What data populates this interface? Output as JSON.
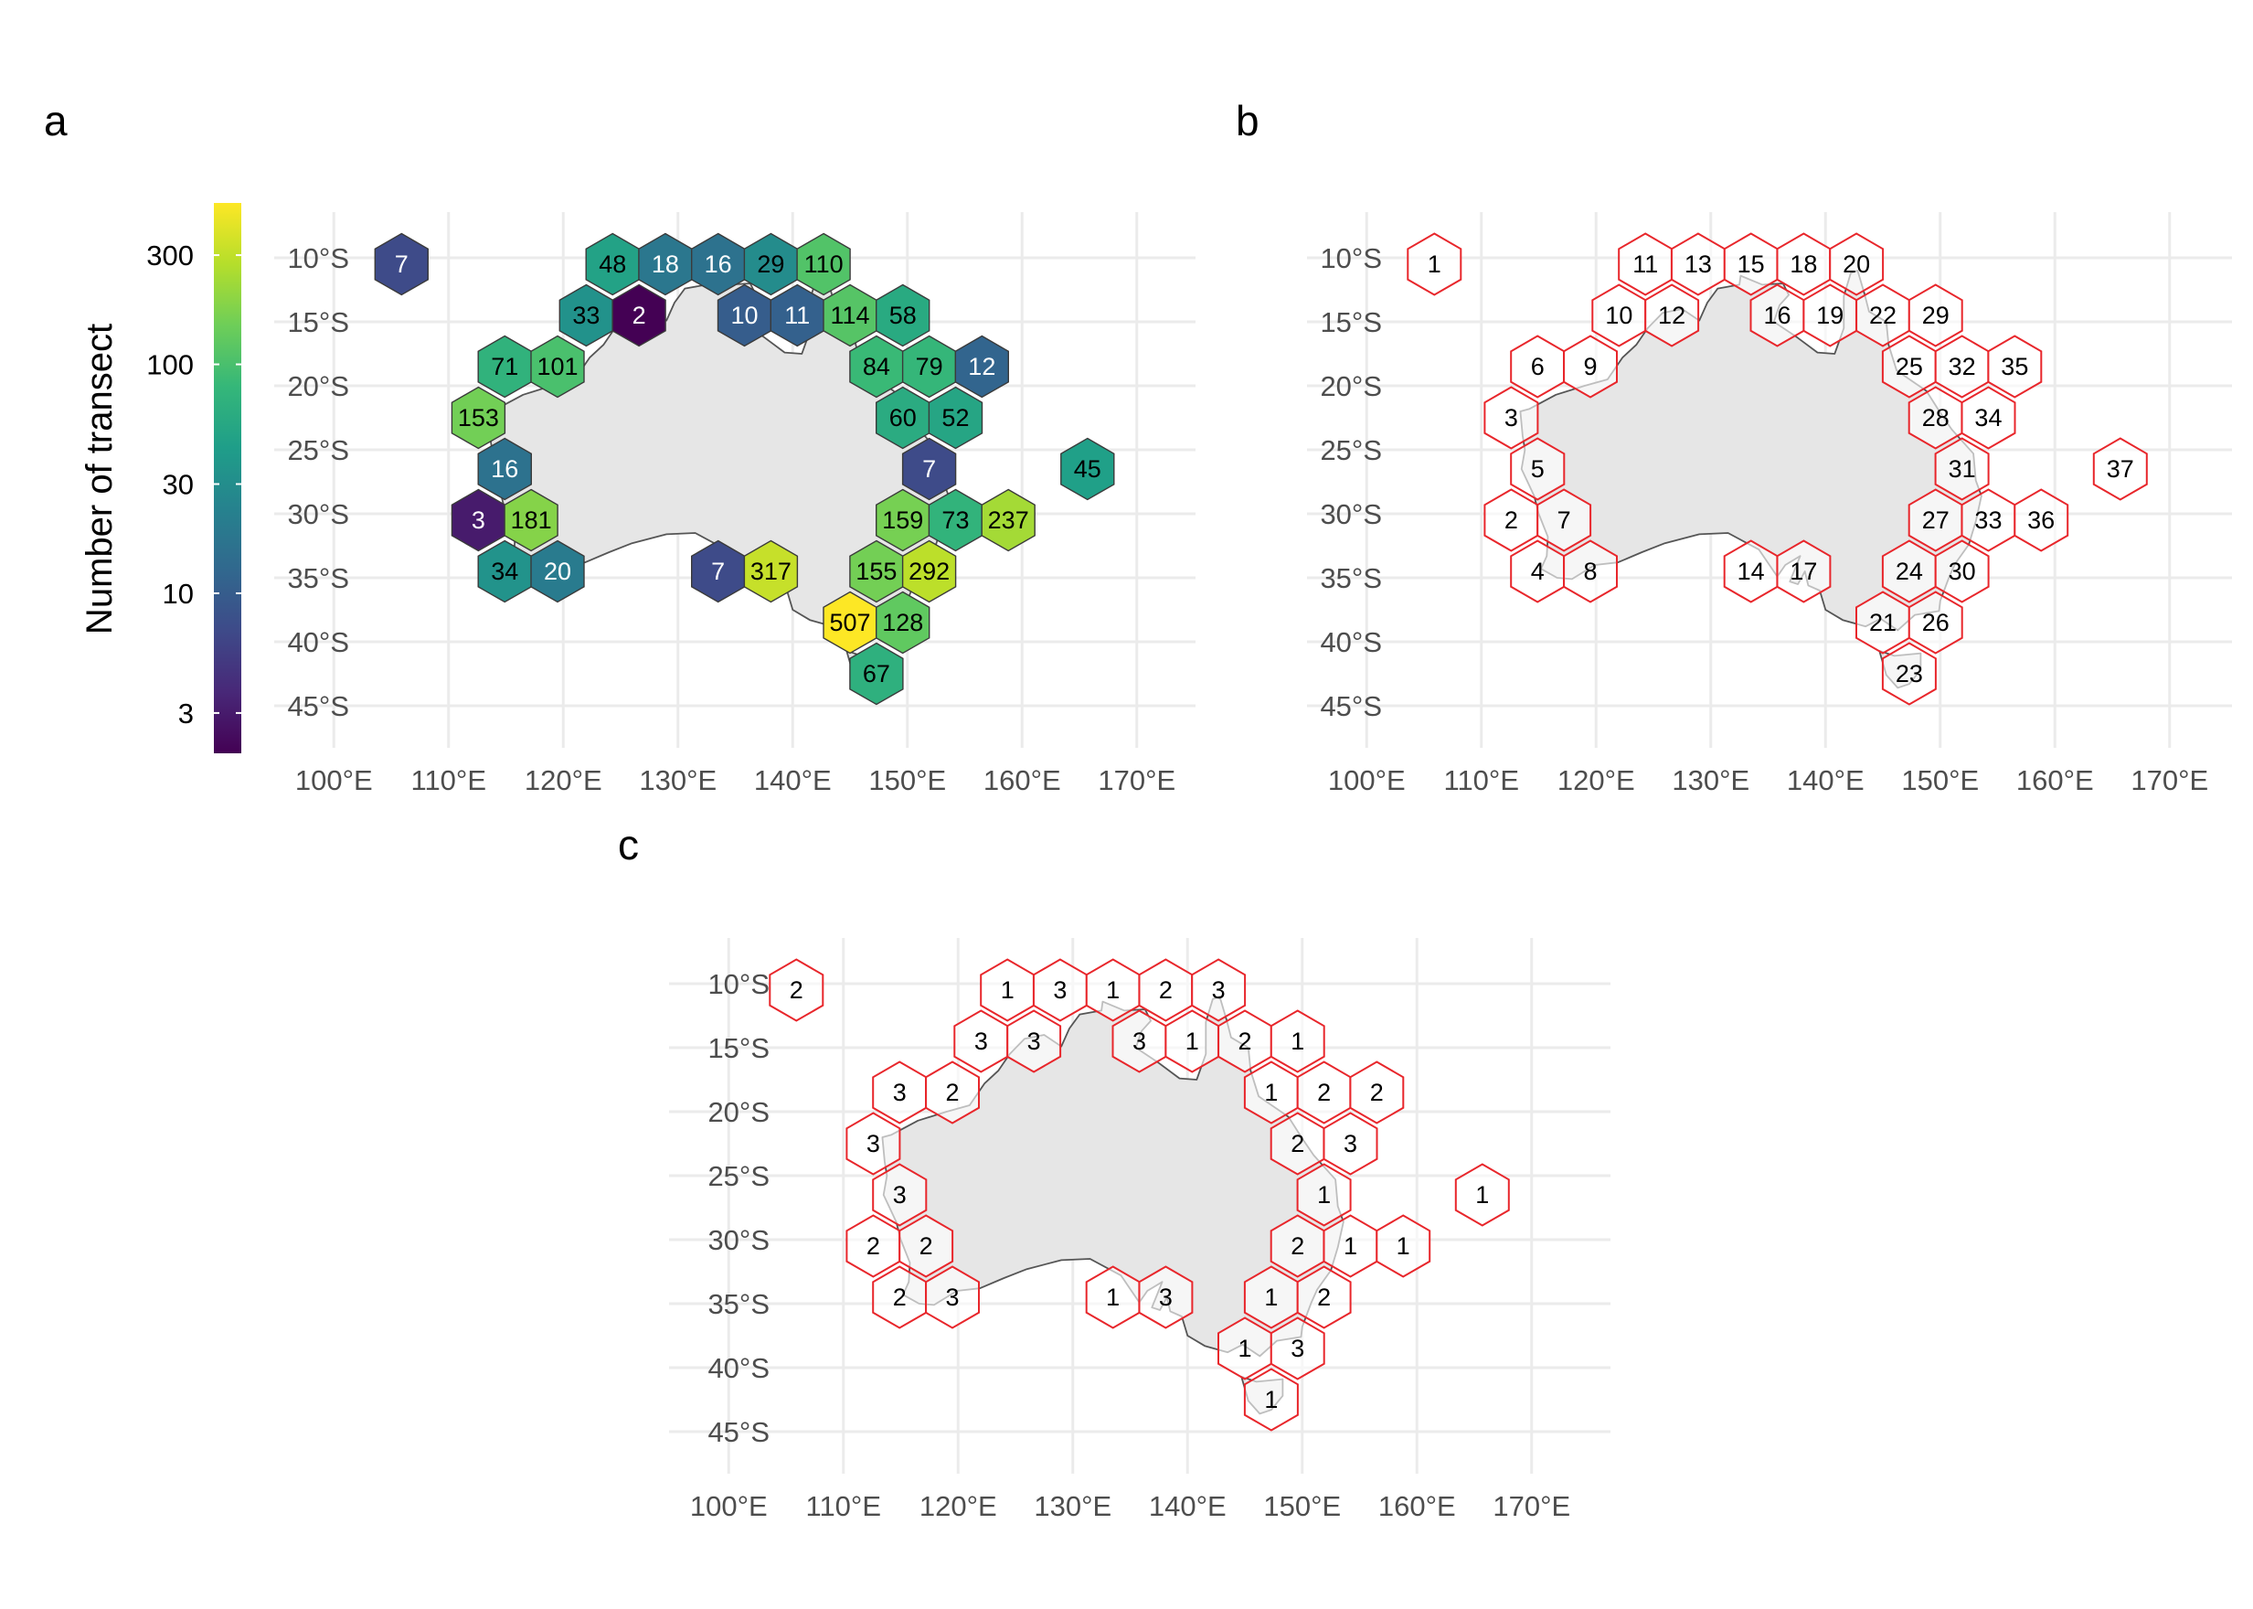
{
  "panels": [
    {
      "id": "a",
      "letter": "a",
      "x_ticks": [
        "100°E",
        "110°E",
        "120°E",
        "130°E",
        "140°E",
        "150°E",
        "160°E",
        "170°E"
      ],
      "y_ticks": [
        "10°S",
        "15°S",
        "20°S",
        "25°S",
        "30°S",
        "35°S",
        "40°S",
        "45°S"
      ],
      "fill": "viridis",
      "hexes": [
        {
          "lon": 105.9,
          "lat": -10.5,
          "label": "7",
          "value": 7
        },
        {
          "lon": 124.3,
          "lat": -10.5,
          "label": "48",
          "value": 48
        },
        {
          "lon": 128.9,
          "lat": -10.5,
          "label": "18",
          "value": 18
        },
        {
          "lon": 133.5,
          "lat": -10.5,
          "label": "16",
          "value": 16
        },
        {
          "lon": 138.1,
          "lat": -10.5,
          "label": "29",
          "value": 29
        },
        {
          "lon": 142.7,
          "lat": -10.5,
          "label": "110",
          "value": 110
        },
        {
          "lon": 122.0,
          "lat": -14.5,
          "label": "33",
          "value": 33
        },
        {
          "lon": 126.6,
          "lat": -14.5,
          "label": "2",
          "value": 2
        },
        {
          "lon": 135.8,
          "lat": -14.5,
          "label": "10",
          "value": 10
        },
        {
          "lon": 140.4,
          "lat": -14.5,
          "label": "11",
          "value": 11
        },
        {
          "lon": 145.0,
          "lat": -14.5,
          "label": "114",
          "value": 114
        },
        {
          "lon": 149.6,
          "lat": -14.5,
          "label": "58",
          "value": 58
        },
        {
          "lon": 114.9,
          "lat": -18.5,
          "label": "71",
          "value": 71
        },
        {
          "lon": 119.5,
          "lat": -18.5,
          "label": "101",
          "value": 101
        },
        {
          "lon": 147.3,
          "lat": -18.5,
          "label": "84",
          "value": 84
        },
        {
          "lon": 151.9,
          "lat": -18.5,
          "label": "79",
          "value": 79
        },
        {
          "lon": 156.5,
          "lat": -18.5,
          "label": "12",
          "value": 12
        },
        {
          "lon": 112.6,
          "lat": -22.5,
          "label": "153",
          "value": 153
        },
        {
          "lon": 149.6,
          "lat": -22.5,
          "label": "60",
          "value": 60
        },
        {
          "lon": 154.2,
          "lat": -22.5,
          "label": "52",
          "value": 52
        },
        {
          "lon": 114.9,
          "lat": -26.5,
          "label": "16",
          "value": 16
        },
        {
          "lon": 151.9,
          "lat": -26.5,
          "label": "7",
          "value": 7
        },
        {
          "lon": 165.7,
          "lat": -26.5,
          "label": "45",
          "value": 45
        },
        {
          "lon": 112.6,
          "lat": -30.5,
          "label": "3",
          "value": 3
        },
        {
          "lon": 117.2,
          "lat": -30.5,
          "label": "181",
          "value": 181
        },
        {
          "lon": 149.6,
          "lat": -30.5,
          "label": "159",
          "value": 159
        },
        {
          "lon": 154.2,
          "lat": -30.5,
          "label": "73",
          "value": 73
        },
        {
          "lon": 158.8,
          "lat": -30.5,
          "label": "237",
          "value": 237
        },
        {
          "lon": 114.9,
          "lat": -34.5,
          "label": "34",
          "value": 34
        },
        {
          "lon": 119.5,
          "lat": -34.5,
          "label": "20",
          "value": 20
        },
        {
          "lon": 133.5,
          "lat": -34.5,
          "label": "7",
          "value": 7
        },
        {
          "lon": 138.1,
          "lat": -34.5,
          "label": "317",
          "value": 317
        },
        {
          "lon": 147.3,
          "lat": -34.5,
          "label": "155",
          "value": 155
        },
        {
          "lon": 151.9,
          "lat": -34.5,
          "label": "292",
          "value": 292
        },
        {
          "lon": 145.0,
          "lat": -38.5,
          "label": "507",
          "value": 507
        },
        {
          "lon": 149.6,
          "lat": -38.5,
          "label": "128",
          "value": 128
        },
        {
          "lon": 147.3,
          "lat": -42.5,
          "label": "67",
          "value": 67
        }
      ]
    },
    {
      "id": "b",
      "letter": "b",
      "x_ticks": [
        "100°E",
        "110°E",
        "120°E",
        "130°E",
        "140°E",
        "150°E",
        "160°E",
        "170°E"
      ],
      "y_ticks": [
        "10°S",
        "15°S",
        "20°S",
        "25°S",
        "30°S",
        "35°S",
        "40°S",
        "45°S"
      ],
      "fill": "outline",
      "hexes": [
        {
          "lon": 105.9,
          "lat": -10.5,
          "label": "1"
        },
        {
          "lon": 124.3,
          "lat": -10.5,
          "label": "11"
        },
        {
          "lon": 128.9,
          "lat": -10.5,
          "label": "13"
        },
        {
          "lon": 133.5,
          "lat": -10.5,
          "label": "15"
        },
        {
          "lon": 138.1,
          "lat": -10.5,
          "label": "18"
        },
        {
          "lon": 142.7,
          "lat": -10.5,
          "label": "20"
        },
        {
          "lon": 122.0,
          "lat": -14.5,
          "label": "10"
        },
        {
          "lon": 126.6,
          "lat": -14.5,
          "label": "12"
        },
        {
          "lon": 135.8,
          "lat": -14.5,
          "label": "16"
        },
        {
          "lon": 140.4,
          "lat": -14.5,
          "label": "19"
        },
        {
          "lon": 145.0,
          "lat": -14.5,
          "label": "22"
        },
        {
          "lon": 149.6,
          "lat": -14.5,
          "label": "29"
        },
        {
          "lon": 114.9,
          "lat": -18.5,
          "label": "6"
        },
        {
          "lon": 119.5,
          "lat": -18.5,
          "label": "9"
        },
        {
          "lon": 147.3,
          "lat": -18.5,
          "label": "25"
        },
        {
          "lon": 151.9,
          "lat": -18.5,
          "label": "32"
        },
        {
          "lon": 156.5,
          "lat": -18.5,
          "label": "35"
        },
        {
          "lon": 112.6,
          "lat": -22.5,
          "label": "3"
        },
        {
          "lon": 149.6,
          "lat": -22.5,
          "label": "28"
        },
        {
          "lon": 154.2,
          "lat": -22.5,
          "label": "34"
        },
        {
          "lon": 114.9,
          "lat": -26.5,
          "label": "5"
        },
        {
          "lon": 151.9,
          "lat": -26.5,
          "label": "31"
        },
        {
          "lon": 165.7,
          "lat": -26.5,
          "label": "37"
        },
        {
          "lon": 112.6,
          "lat": -30.5,
          "label": "2"
        },
        {
          "lon": 117.2,
          "lat": -30.5,
          "label": "7"
        },
        {
          "lon": 149.6,
          "lat": -30.5,
          "label": "27"
        },
        {
          "lon": 154.2,
          "lat": -30.5,
          "label": "33"
        },
        {
          "lon": 158.8,
          "lat": -30.5,
          "label": "36"
        },
        {
          "lon": 114.9,
          "lat": -34.5,
          "label": "4"
        },
        {
          "lon": 119.5,
          "lat": -34.5,
          "label": "8"
        },
        {
          "lon": 133.5,
          "lat": -34.5,
          "label": "14"
        },
        {
          "lon": 138.1,
          "lat": -34.5,
          "label": "17"
        },
        {
          "lon": 147.3,
          "lat": -34.5,
          "label": "24"
        },
        {
          "lon": 151.9,
          "lat": -34.5,
          "label": "30"
        },
        {
          "lon": 145.0,
          "lat": -38.5,
          "label": "21"
        },
        {
          "lon": 149.6,
          "lat": -38.5,
          "label": "26"
        },
        {
          "lon": 147.3,
          "lat": -42.5,
          "label": "23"
        }
      ]
    },
    {
      "id": "c",
      "letter": "c",
      "x_ticks": [
        "100°E",
        "110°E",
        "120°E",
        "130°E",
        "140°E",
        "150°E",
        "160°E",
        "170°E"
      ],
      "y_ticks": [
        "10°S",
        "15°S",
        "20°S",
        "25°S",
        "30°S",
        "35°S",
        "40°S",
        "45°S"
      ],
      "fill": "outline",
      "hexes": [
        {
          "lon": 105.9,
          "lat": -10.5,
          "label": "2"
        },
        {
          "lon": 124.3,
          "lat": -10.5,
          "label": "1"
        },
        {
          "lon": 128.9,
          "lat": -10.5,
          "label": "3"
        },
        {
          "lon": 133.5,
          "lat": -10.5,
          "label": "1"
        },
        {
          "lon": 138.1,
          "lat": -10.5,
          "label": "2"
        },
        {
          "lon": 142.7,
          "lat": -10.5,
          "label": "3"
        },
        {
          "lon": 122.0,
          "lat": -14.5,
          "label": "3"
        },
        {
          "lon": 126.6,
          "lat": -14.5,
          "label": "3"
        },
        {
          "lon": 135.8,
          "lat": -14.5,
          "label": "3"
        },
        {
          "lon": 140.4,
          "lat": -14.5,
          "label": "1"
        },
        {
          "lon": 145.0,
          "lat": -14.5,
          "label": "2"
        },
        {
          "lon": 149.6,
          "lat": -14.5,
          "label": "1"
        },
        {
          "lon": 114.9,
          "lat": -18.5,
          "label": "3"
        },
        {
          "lon": 119.5,
          "lat": -18.5,
          "label": "2"
        },
        {
          "lon": 147.3,
          "lat": -18.5,
          "label": "1"
        },
        {
          "lon": 151.9,
          "lat": -18.5,
          "label": "2"
        },
        {
          "lon": 156.5,
          "lat": -18.5,
          "label": "2"
        },
        {
          "lon": 112.6,
          "lat": -22.5,
          "label": "3"
        },
        {
          "lon": 149.6,
          "lat": -22.5,
          "label": "2"
        },
        {
          "lon": 154.2,
          "lat": -22.5,
          "label": "3"
        },
        {
          "lon": 114.9,
          "lat": -26.5,
          "label": "3"
        },
        {
          "lon": 151.9,
          "lat": -26.5,
          "label": "1"
        },
        {
          "lon": 165.7,
          "lat": -26.5,
          "label": "1"
        },
        {
          "lon": 112.6,
          "lat": -30.5,
          "label": "2"
        },
        {
          "lon": 117.2,
          "lat": -30.5,
          "label": "2"
        },
        {
          "lon": 149.6,
          "lat": -30.5,
          "label": "2"
        },
        {
          "lon": 154.2,
          "lat": -30.5,
          "label": "1"
        },
        {
          "lon": 158.8,
          "lat": -30.5,
          "label": "1"
        },
        {
          "lon": 114.9,
          "lat": -34.5,
          "label": "2"
        },
        {
          "lon": 119.5,
          "lat": -34.5,
          "label": "3"
        },
        {
          "lon": 133.5,
          "lat": -34.5,
          "label": "1"
        },
        {
          "lon": 138.1,
          "lat": -34.5,
          "label": "3"
        },
        {
          "lon": 147.3,
          "lat": -34.5,
          "label": "1"
        },
        {
          "lon": 151.9,
          "lat": -34.5,
          "label": "2"
        },
        {
          "lon": 145.0,
          "lat": -38.5,
          "label": "1"
        },
        {
          "lon": 149.6,
          "lat": -38.5,
          "label": "3"
        },
        {
          "lon": 147.3,
          "lat": -42.5,
          "label": "1"
        }
      ]
    }
  ],
  "legend": {
    "title": "Number of transect",
    "scale": "log10",
    "range": [
      2,
      507
    ],
    "palette": [
      "#440154",
      "#482878",
      "#3e4a89",
      "#31688e",
      "#26828e",
      "#1f9e89",
      "#35b779",
      "#6ece58",
      "#b5de2b",
      "#fde725"
    ],
    "ticks": [
      {
        "value": 3,
        "label": "3"
      },
      {
        "value": 10,
        "label": "10"
      },
      {
        "value": 30,
        "label": "30"
      },
      {
        "value": 100,
        "label": "100"
      },
      {
        "value": 300,
        "label": "300"
      }
    ]
  },
  "colors": {
    "land": "#e6e6e6",
    "coast": "#555555",
    "grid": "#ebebeb",
    "hex_outline_red": "#e8262b"
  }
}
